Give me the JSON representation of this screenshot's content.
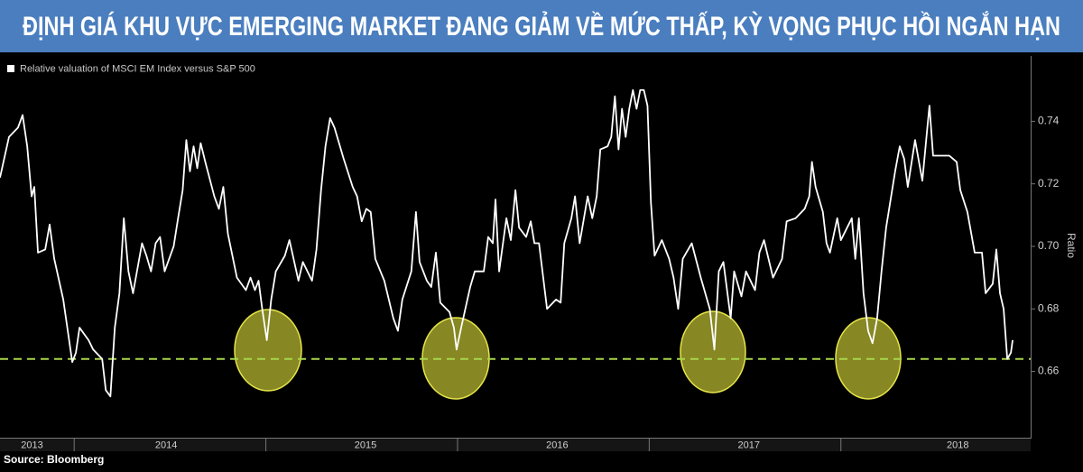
{
  "chart_data": {
    "type": "line",
    "title": "ĐỊNH GIÁ KHU VỰC EMERGING MARKET ĐANG GIẢM VỀ MỨC THẤP, KỲ VỌNG PHỤC HỒI NGẮN HẠN",
    "y_label": "Ratio",
    "source": "Source: Bloomberg",
    "x": [
      2013.613,
      2013.66,
      2013.707,
      2013.731,
      2013.755,
      2013.778,
      2013.792,
      2013.811,
      2013.849,
      2013.872,
      2013.896,
      2013.943,
      2013.99,
      2014.009,
      2014.028,
      2014.075,
      2014.099,
      2014.146,
      2014.165,
      2014.189,
      2014.212,
      2014.236,
      2014.259,
      2014.283,
      2014.307,
      2014.354,
      2014.377,
      2014.401,
      2014.425,
      2014.448,
      2014.472,
      2014.519,
      2014.542,
      2014.566,
      2014.585,
      2014.604,
      2014.623,
      2014.642,
      2014.66,
      2014.684,
      2014.731,
      2014.755,
      2014.778,
      2014.802,
      2014.849,
      2014.896,
      2014.92,
      2014.943,
      2014.962,
      2014.981,
      2015.005,
      2015.028,
      2015.052,
      2015.099,
      2015.123,
      2015.17,
      2015.193,
      2015.241,
      2015.264,
      2015.288,
      2015.311,
      2015.335,
      2015.358,
      2015.406,
      2015.453,
      2015.476,
      2015.5,
      2015.524,
      2015.547,
      2015.571,
      2015.618,
      2015.665,
      2015.689,
      2015.712,
      2015.759,
      2015.783,
      2015.802,
      2015.84,
      2015.863,
      2015.887,
      2015.91,
      2015.958,
      2015.981,
      2015.995,
      2016.019,
      2016.066,
      2016.09,
      2016.137,
      2016.16,
      2016.184,
      2016.198,
      2016.217,
      2016.255,
      2016.278,
      2016.302,
      2016.321,
      2016.358,
      2016.382,
      2016.401,
      2016.425,
      2016.467,
      2016.514,
      2016.538,
      2016.557,
      2016.594,
      2016.613,
      2016.637,
      2016.679,
      2016.703,
      2016.726,
      2016.745,
      2016.783,
      2016.802,
      2016.821,
      2016.84,
      2016.858,
      2016.877,
      2016.896,
      2016.915,
      2016.934,
      2016.953,
      2016.972,
      2016.991,
      2017.009,
      2017.028,
      2017.066,
      2017.104,
      2017.127,
      2017.151,
      2017.175,
      2017.222,
      2017.269,
      2017.316,
      2017.34,
      2017.363,
      2017.387,
      2017.425,
      2017.443,
      2017.481,
      2017.505,
      2017.552,
      2017.575,
      2017.599,
      2017.646,
      2017.693,
      2017.717,
      2017.764,
      2017.811,
      2017.835,
      2017.849,
      2017.868,
      2017.906,
      2017.925,
      2017.943,
      2017.981,
      2018.0,
      2018.057,
      2018.075,
      2018.094,
      2018.118,
      2018.142,
      2018.165,
      2018.189,
      2018.212,
      2018.236,
      2018.283,
      2018.307,
      2018.33,
      2018.349,
      2018.387,
      2018.425,
      2018.448,
      2018.462,
      2018.481,
      2018.519,
      2018.566,
      2018.604,
      2018.623,
      2018.66,
      2018.698,
      2018.736,
      2018.755,
      2018.792,
      2018.811,
      2018.83,
      2018.849,
      2018.868,
      2018.887,
      2018.896
    ],
    "series": [
      {
        "name": "Relative valuation of MSCI EM Index versus S&P 500",
        "color": "#ffffff",
        "values": [
          0.722,
          0.735,
          0.738,
          0.742,
          0.732,
          0.716,
          0.719,
          0.698,
          0.699,
          0.707,
          0.696,
          0.683,
          0.663,
          0.666,
          0.674,
          0.67,
          0.667,
          0.664,
          0.654,
          0.652,
          0.674,
          0.685,
          0.709,
          0.692,
          0.685,
          0.701,
          0.697,
          0.692,
          0.701,
          0.703,
          0.692,
          0.7,
          0.709,
          0.718,
          0.734,
          0.724,
          0.732,
          0.725,
          0.733,
          0.727,
          0.716,
          0.712,
          0.719,
          0.704,
          0.69,
          0.686,
          0.69,
          0.686,
          0.689,
          0.68,
          0.67,
          0.683,
          0.692,
          0.697,
          0.702,
          0.689,
          0.695,
          0.689,
          0.699,
          0.718,
          0.732,
          0.741,
          0.738,
          0.728,
          0.719,
          0.716,
          0.708,
          0.712,
          0.711,
          0.696,
          0.689,
          0.677,
          0.673,
          0.683,
          0.692,
          0.711,
          0.695,
          0.689,
          0.687,
          0.698,
          0.682,
          0.679,
          0.674,
          0.667,
          0.674,
          0.687,
          0.692,
          0.692,
          0.703,
          0.701,
          0.715,
          0.692,
          0.709,
          0.702,
          0.718,
          0.706,
          0.703,
          0.708,
          0.701,
          0.701,
          0.68,
          0.683,
          0.682,
          0.701,
          0.709,
          0.716,
          0.701,
          0.716,
          0.709,
          0.716,
          0.731,
          0.732,
          0.735,
          0.748,
          0.731,
          0.744,
          0.735,
          0.744,
          0.75,
          0.744,
          0.75,
          0.75,
          0.745,
          0.714,
          0.697,
          0.702,
          0.696,
          0.69,
          0.68,
          0.696,
          0.701,
          0.69,
          0.68,
          0.667,
          0.692,
          0.695,
          0.677,
          0.692,
          0.684,
          0.692,
          0.686,
          0.698,
          0.702,
          0.69,
          0.696,
          0.708,
          0.709,
          0.712,
          0.716,
          0.727,
          0.719,
          0.711,
          0.701,
          0.698,
          0.709,
          0.702,
          0.709,
          0.696,
          0.709,
          0.685,
          0.673,
          0.669,
          0.677,
          0.692,
          0.706,
          0.724,
          0.732,
          0.728,
          0.719,
          0.734,
          0.721,
          0.736,
          0.745,
          0.729,
          0.729,
          0.729,
          0.727,
          0.718,
          0.711,
          0.698,
          0.698,
          0.685,
          0.688,
          0.699,
          0.685,
          0.68,
          0.664,
          0.666,
          0.67
        ]
      }
    ],
    "xlim": [
      2013.613,
      2018.99
    ],
    "xticks": [
      {
        "value": 2013.78,
        "label": "2013"
      },
      {
        "value": 2014.48,
        "label": "2014"
      },
      {
        "value": 2015.52,
        "label": "2015"
      },
      {
        "value": 2016.52,
        "label": "2016"
      },
      {
        "value": 2017.52,
        "label": "2017"
      },
      {
        "value": 2018.61,
        "label": "2018"
      }
    ],
    "ylim": [
      0.6388,
      0.7609
    ],
    "yticks": [
      0.66,
      0.68,
      {
        "value": 0.7,
        "label": "0.70"
      },
      0.72,
      0.74
    ],
    "reference_line": {
      "value": 0.664,
      "color": "#a8d64a"
    },
    "grid": false
  }
}
